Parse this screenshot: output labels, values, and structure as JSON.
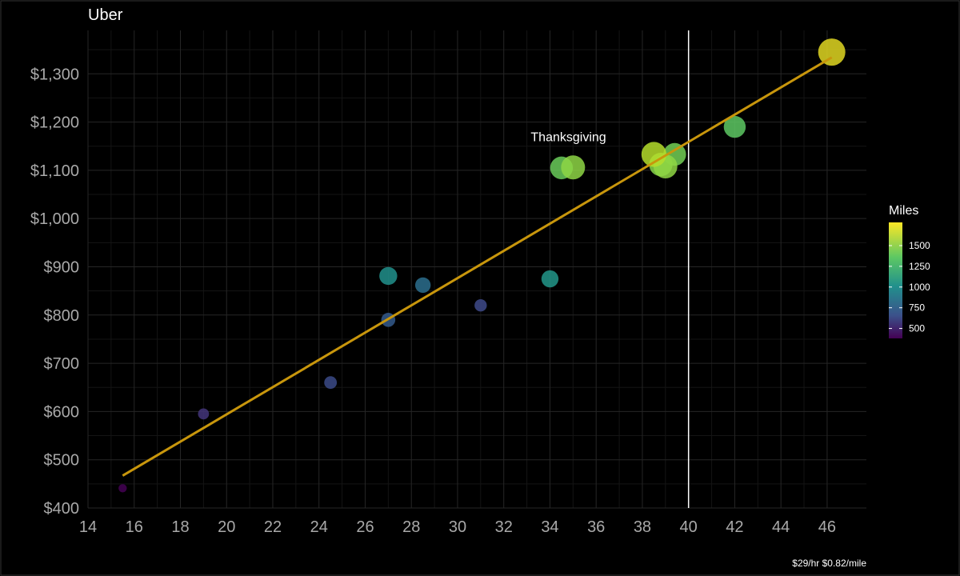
{
  "chart_data": {
    "type": "scatter",
    "title": "Uber",
    "caption": "$29/hr $0.82/mile",
    "xlabel": "",
    "ylabel": "",
    "xlim": [
      14,
      47.7
    ],
    "ylim": [
      400,
      1390
    ],
    "x_ticks": [
      "14",
      "16",
      "18",
      "20",
      "22",
      "24",
      "26",
      "28",
      "30",
      "32",
      "34",
      "36",
      "38",
      "40",
      "42",
      "44",
      "46"
    ],
    "x_tick_values": [
      14,
      16,
      18,
      20,
      22,
      24,
      26,
      28,
      30,
      32,
      34,
      36,
      38,
      40,
      42,
      44,
      46
    ],
    "y_ticks": [
      "$400",
      "$500",
      "$600",
      "$700",
      "$800",
      "$900",
      "$1,000",
      "$1,100",
      "$1,200",
      "$1,300"
    ],
    "y_tick_values": [
      400,
      500,
      600,
      700,
      800,
      900,
      1000,
      1100,
      1200,
      1300
    ],
    "grid": true,
    "vline_x": 40,
    "trendline": {
      "x": [
        15.5,
        46.2
      ],
      "y": [
        467,
        1334
      ],
      "color": "#C8960C"
    },
    "color_scale": {
      "title": "Miles",
      "min": 380,
      "max": 1780,
      "tick_values": [
        500,
        750,
        1000,
        1250,
        1500
      ],
      "tick_labels": [
        "500",
        "750",
        "1000",
        "1250",
        "1500"
      ],
      "placement": "right"
    },
    "points": [
      {
        "x": 15.5,
        "y": 441,
        "miles": 400,
        "color": "#440154"
      },
      {
        "x": 19.0,
        "y": 595,
        "miles": 600,
        "color": "#43357A"
      },
      {
        "x": 24.5,
        "y": 660,
        "miles": 720,
        "color": "#3B4A87"
      },
      {
        "x": 27.0,
        "y": 790,
        "miles": 820,
        "color": "#345B8C"
      },
      {
        "x": 27.0,
        "y": 881,
        "miles": 1100,
        "color": "#21908C"
      },
      {
        "x": 28.5,
        "y": 862,
        "miles": 930,
        "color": "#2C6E8E"
      },
      {
        "x": 31.0,
        "y": 820,
        "miles": 700,
        "color": "#3E4A89"
      },
      {
        "x": 34.0,
        "y": 875,
        "miles": 1050,
        "color": "#22978A"
      },
      {
        "x": 34.5,
        "y": 1105,
        "miles": 1450,
        "color": "#6ACD5B"
      },
      {
        "x": 35.0,
        "y": 1106,
        "miles": 1550,
        "color": "#8ED645"
      },
      {
        "x": 38.5,
        "y": 1133,
        "miles": 1620,
        "color": "#B5DE2B"
      },
      {
        "x": 38.8,
        "y": 1112,
        "miles": 1500,
        "color": "#86D549"
      },
      {
        "x": 39.0,
        "y": 1108,
        "miles": 1530,
        "color": "#8FD744"
      },
      {
        "x": 39.4,
        "y": 1133,
        "miles": 1450,
        "color": "#73D055"
      },
      {
        "x": 42.0,
        "y": 1190,
        "miles": 1400,
        "color": "#5DC863"
      },
      {
        "x": 46.2,
        "y": 1345,
        "miles": 1780,
        "color": "#E0D722"
      }
    ],
    "annotations": [
      {
        "text": "Thanksgiving",
        "x": 34.8,
        "y": 1160
      }
    ]
  }
}
